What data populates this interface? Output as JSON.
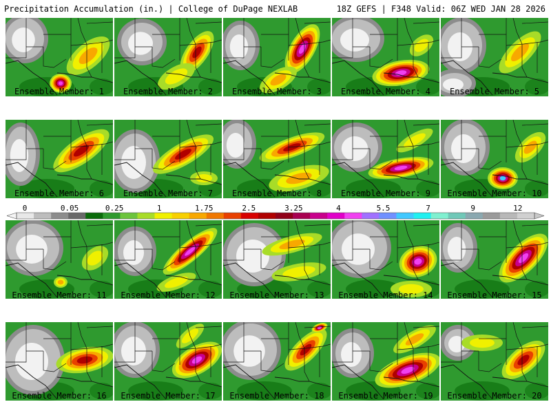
{
  "header": {
    "title_left": "Precipitation Accumulation (in.) | College of DuPage NEXLAB",
    "title_right": "18Z GEFS | F348 Valid: 06Z WED JAN 28 2026"
  },
  "colorbar": {
    "labels": [
      "0",
      "0.05",
      "0.25",
      "1",
      "1.75",
      "2.5",
      "3.25",
      "4",
      "5.5",
      "7",
      "9",
      "12"
    ],
    "colors": [
      "#e8e8e8",
      "#bdbdbd",
      "#8c8c8c",
      "#696969",
      "#0a6b0a",
      "#2e9a2e",
      "#6cc43c",
      "#a8dc28",
      "#f0f000",
      "#f8d000",
      "#f8a800",
      "#f07800",
      "#e84000",
      "#d80000",
      "#b00000",
      "#900018",
      "#a80050",
      "#c8008c",
      "#e000c8",
      "#f040f0",
      "#a070ff",
      "#7090ff",
      "#40c8ff",
      "#20f0f0",
      "#80f0d0",
      "#70c8b8",
      "#8aa8b0",
      "#9a9a9a",
      "#b8b8b8",
      "#d0d0d0"
    ]
  },
  "panels": [
    {
      "label": "Ensemble Member: 1"
    },
    {
      "label": "Ensemble Member: 2"
    },
    {
      "label": "Ensemble Member: 3"
    },
    {
      "label": "Ensemble Member: 4"
    },
    {
      "label": "Ensemble Member: 5"
    },
    {
      "label": "Ensemble Member: 6"
    },
    {
      "label": "Ensemble Member: 7"
    },
    {
      "label": "Ensemble Member: 8"
    },
    {
      "label": "Ensemble Member: 9"
    },
    {
      "label": "Ensemble Member: 10"
    },
    {
      "label": "Ensemble Member: 11"
    },
    {
      "label": "Ensemble Member: 12"
    },
    {
      "label": "Ensemble Member: 13"
    },
    {
      "label": "Ensemble Member: 14"
    },
    {
      "label": "Ensemble Member: 15"
    },
    {
      "label": "Ensemble Member: 16"
    },
    {
      "label": "Ensemble Member: 17"
    },
    {
      "label": "Ensemble Member: 18"
    },
    {
      "label": "Ensemble Member: 19"
    },
    {
      "label": "Ensemble Member: 20"
    }
  ]
}
